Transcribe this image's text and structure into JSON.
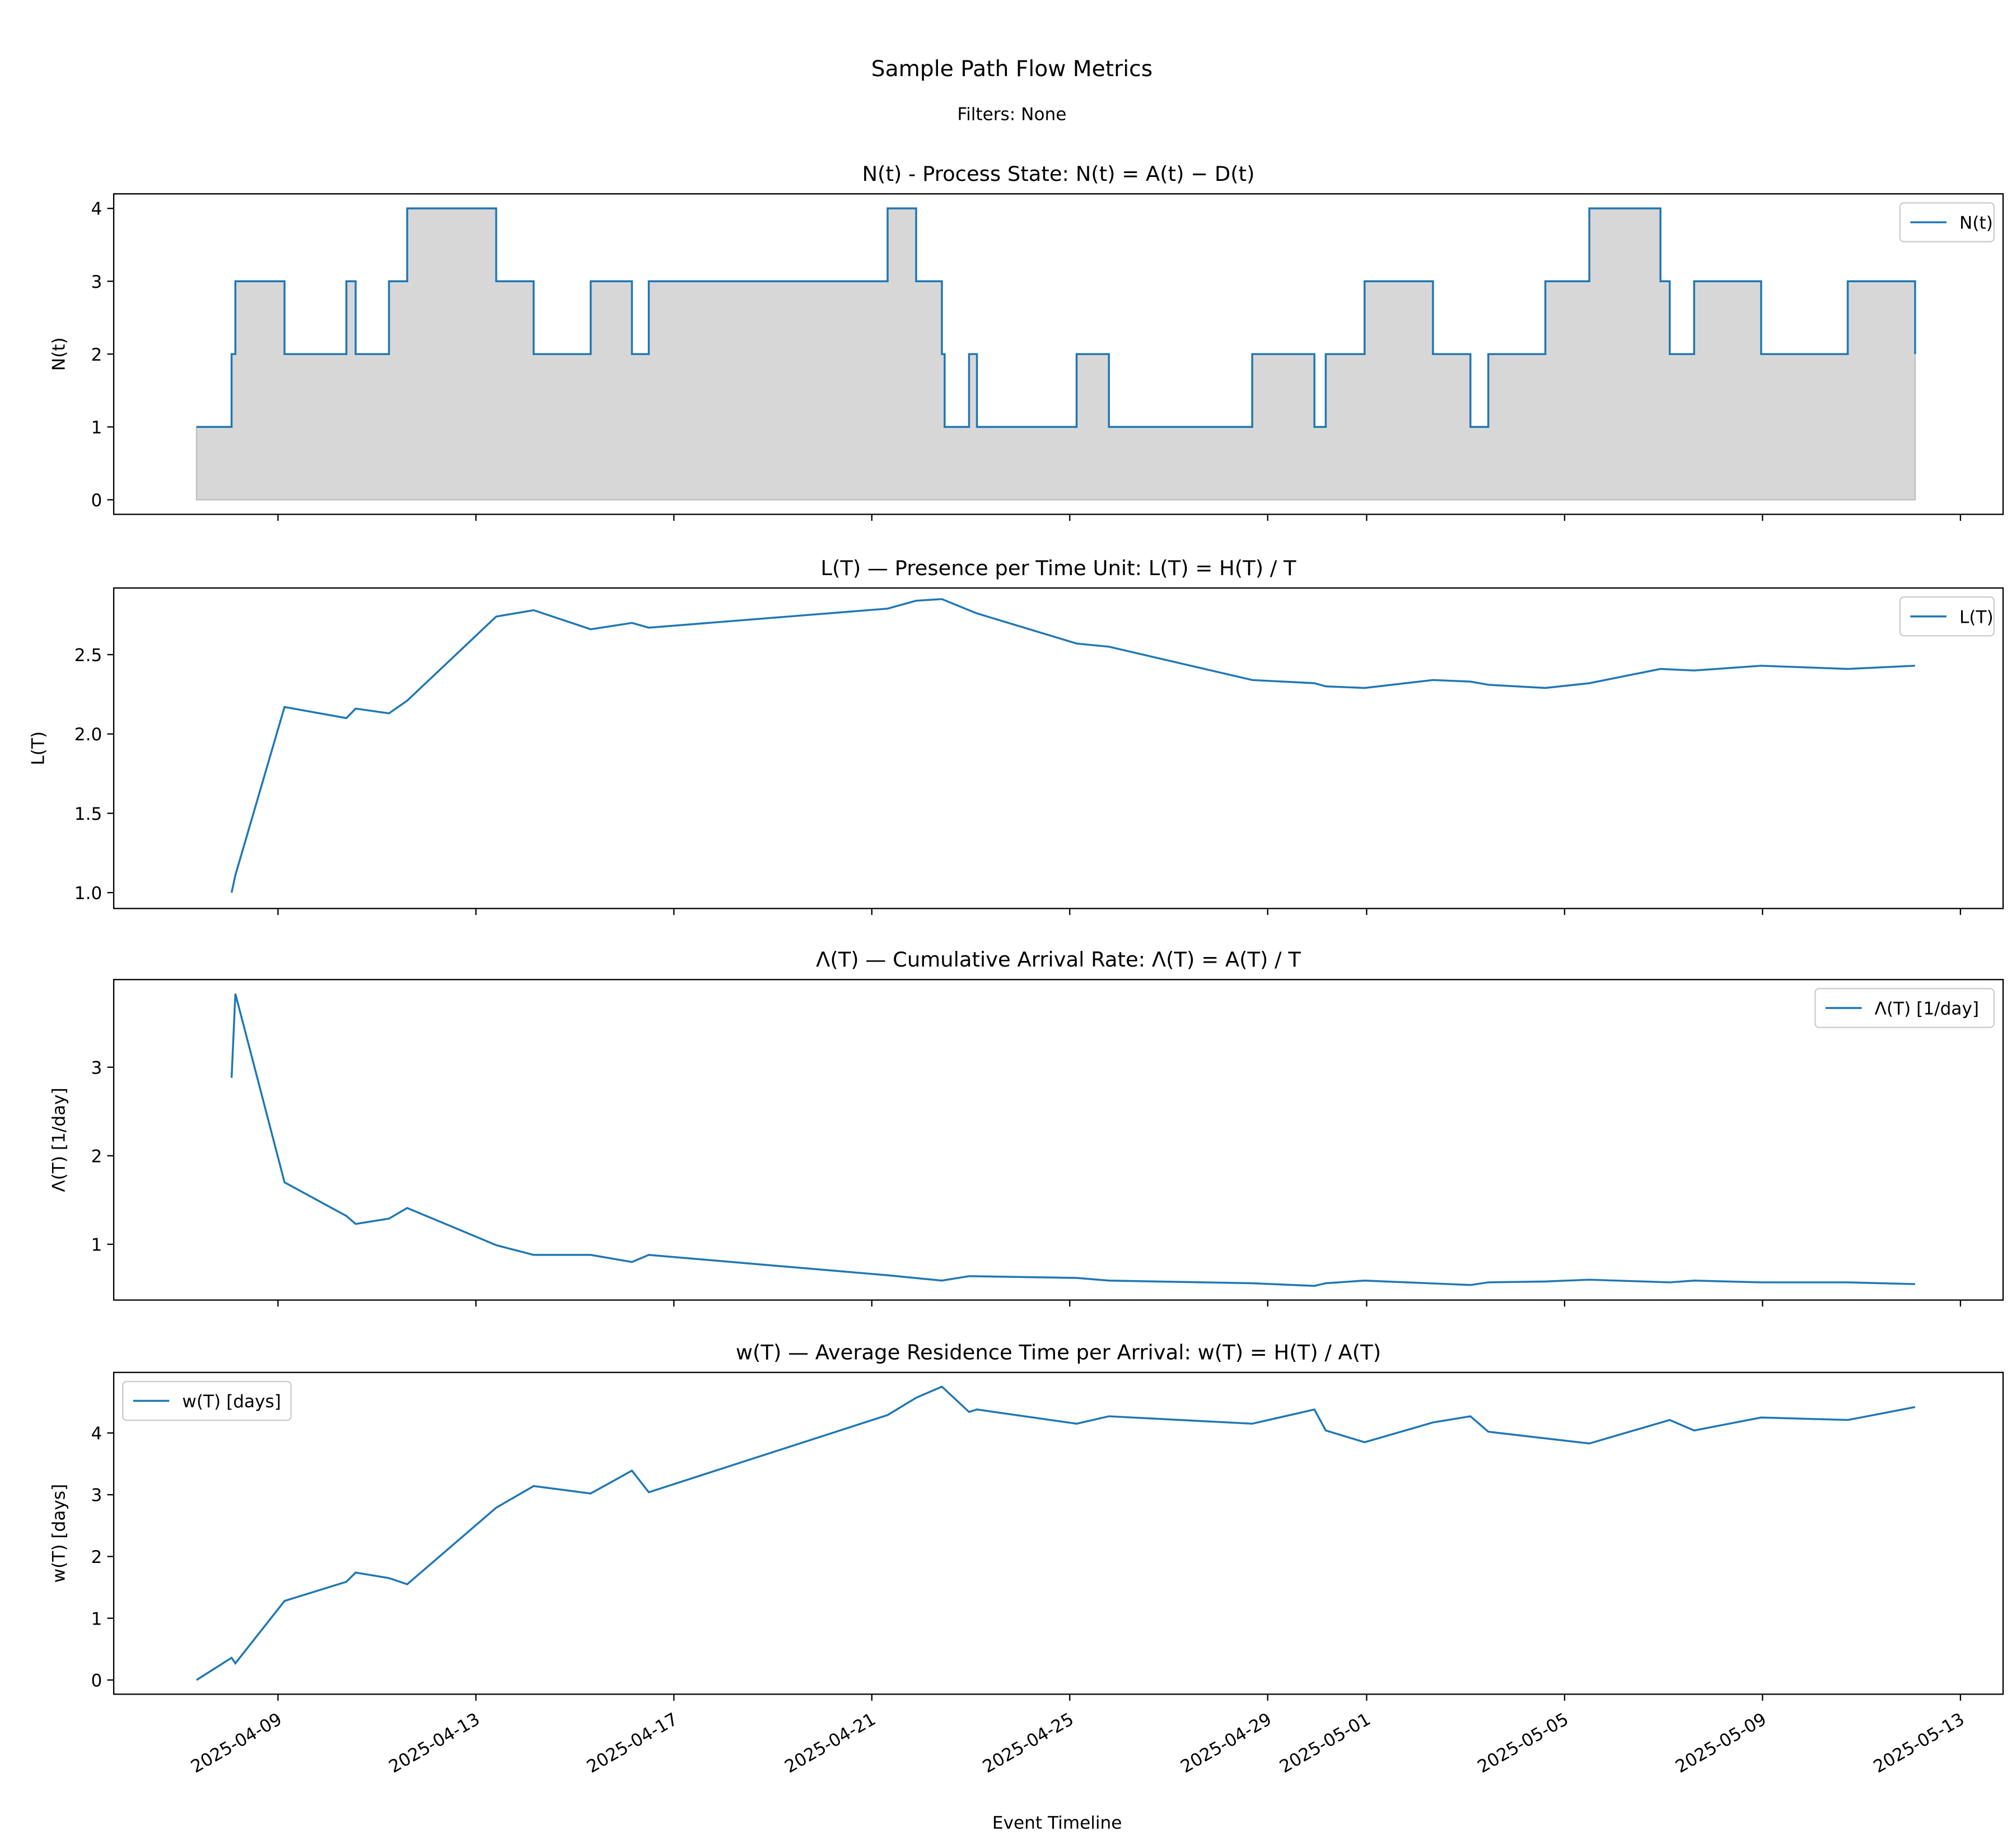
{
  "figure": {
    "title": "Sample Path Flow Metrics",
    "subtitle": "Filters: None"
  },
  "shared_x": {
    "xlabel": "Event Timeline",
    "xlim": [
      "2025-04-05T16:20",
      "2025-05-13T20:40"
    ],
    "ticks": [
      "2025-04-09",
      "2025-04-13",
      "2025-04-17",
      "2025-04-21",
      "2025-04-25",
      "2025-04-29",
      "2025-05-01",
      "2025-05-05",
      "2025-05-09",
      "2025-05-13"
    ]
  },
  "colors": {
    "line": "#1f77b4",
    "fill": "#d7d7d7",
    "fill_edge": "#bfbfbf"
  },
  "chart_data": [
    {
      "type": "line",
      "step": true,
      "filled": true,
      "title": "N(t) - Process State: N(t) = A(t) − D(t)",
      "ylabel": "N(t)",
      "ylim": [
        -0.2,
        4.2
      ],
      "yticks": [
        "0",
        "1",
        "2",
        "3",
        "4"
      ],
      "grid": false,
      "legend": {
        "label": "N(t)",
        "position": "top-right"
      },
      "points": [
        [
          "2025-04-07T08:30",
          1
        ],
        [
          "2025-04-08T01:30",
          2
        ],
        [
          "2025-04-08T03:20",
          3
        ],
        [
          "2025-04-09T03:10",
          2
        ],
        [
          "2025-04-10T09:10",
          3
        ],
        [
          "2025-04-10T13:40",
          2
        ],
        [
          "2025-04-11T05:50",
          3
        ],
        [
          "2025-04-11T14:40",
          4
        ],
        [
          "2025-04-13T09:50",
          3
        ],
        [
          "2025-04-14T04:00",
          2
        ],
        [
          "2025-04-15T07:40",
          3
        ],
        [
          "2025-04-16T03:40",
          2
        ],
        [
          "2025-04-16T11:50",
          3
        ],
        [
          "2025-04-21T07:40",
          4
        ],
        [
          "2025-04-21T21:30",
          3
        ],
        [
          "2025-04-22T10:00",
          2
        ],
        [
          "2025-04-22T11:20",
          1
        ],
        [
          "2025-04-22T23:10",
          2
        ],
        [
          "2025-04-23T03:00",
          1
        ],
        [
          "2025-04-25T03:20",
          2
        ],
        [
          "2025-04-25T19:00",
          1
        ],
        [
          "2025-04-28T16:30",
          2
        ],
        [
          "2025-04-29T22:40",
          1
        ],
        [
          "2025-04-30T04:10",
          2
        ],
        [
          "2025-04-30T23:00",
          3
        ],
        [
          "2025-05-02T08:10",
          2
        ],
        [
          "2025-05-03T02:20",
          1
        ],
        [
          "2025-05-03T11:00",
          2
        ],
        [
          "2025-05-04T14:40",
          3
        ],
        [
          "2025-05-05T12:00",
          4
        ],
        [
          "2025-05-06T22:30",
          3
        ],
        [
          "2025-05-07T03:00",
          2
        ],
        [
          "2025-05-07T14:50",
          3
        ],
        [
          "2025-05-08T23:20",
          2
        ],
        [
          "2025-05-10T17:20",
          3
        ],
        [
          "2025-05-12T02:00",
          2
        ]
      ]
    },
    {
      "type": "line",
      "title": "L(T) — Presence per Time Unit: L(T) = H(T) / T",
      "ylabel": "L(T)",
      "ylim": [
        0.9,
        2.92
      ],
      "yticks": [
        "1.0",
        "1.5",
        "2.0",
        "2.5"
      ],
      "grid": false,
      "legend": {
        "label": "L(T)",
        "position": "top-right"
      },
      "points": [
        [
          "2025-04-08T01:30",
          1.0
        ],
        [
          "2025-04-08T03:20",
          1.11
        ],
        [
          "2025-04-09T03:10",
          2.17
        ],
        [
          "2025-04-10T09:10",
          2.1
        ],
        [
          "2025-04-10T13:40",
          2.16
        ],
        [
          "2025-04-11T05:50",
          2.13
        ],
        [
          "2025-04-11T14:40",
          2.21
        ],
        [
          "2025-04-13T09:50",
          2.74
        ],
        [
          "2025-04-14T04:00",
          2.78
        ],
        [
          "2025-04-15T07:40",
          2.66
        ],
        [
          "2025-04-16T03:40",
          2.7
        ],
        [
          "2025-04-16T11:50",
          2.67
        ],
        [
          "2025-04-21T07:40",
          2.79
        ],
        [
          "2025-04-21T21:30",
          2.84
        ],
        [
          "2025-04-22T10:00",
          2.85
        ],
        [
          "2025-04-22T23:10",
          2.78
        ],
        [
          "2025-04-23T03:00",
          2.76
        ],
        [
          "2025-04-25T03:20",
          2.57
        ],
        [
          "2025-04-25T19:00",
          2.55
        ],
        [
          "2025-04-28T16:30",
          2.34
        ],
        [
          "2025-04-29T22:40",
          2.32
        ],
        [
          "2025-04-30T04:10",
          2.3
        ],
        [
          "2025-04-30T23:00",
          2.29
        ],
        [
          "2025-05-02T08:10",
          2.34
        ],
        [
          "2025-05-03T02:20",
          2.33
        ],
        [
          "2025-05-03T11:00",
          2.31
        ],
        [
          "2025-05-04T14:40",
          2.29
        ],
        [
          "2025-05-05T12:00",
          2.32
        ],
        [
          "2025-05-06T22:30",
          2.41
        ],
        [
          "2025-05-07T14:50",
          2.4
        ],
        [
          "2025-05-08T23:20",
          2.43
        ],
        [
          "2025-05-10T17:20",
          2.41
        ],
        [
          "2025-05-12T02:00",
          2.43
        ]
      ]
    },
    {
      "type": "line",
      "title": "Λ(T) — Cumulative Arrival Rate: Λ(T) = A(T) / T",
      "ylabel": "Λ(T) [1/day]",
      "ylim": [
        0.37,
        3.99
      ],
      "yticks": [
        "1",
        "2",
        "3"
      ],
      "grid": false,
      "legend": {
        "label": "Λ(T) [1/day]",
        "position": "top-right"
      },
      "points": [
        [
          "2025-04-08T01:30",
          2.88
        ],
        [
          "2025-04-08T03:20",
          3.83
        ],
        [
          "2025-04-09T03:10",
          1.7
        ],
        [
          "2025-04-10T09:10",
          1.32
        ],
        [
          "2025-04-10T13:40",
          1.23
        ],
        [
          "2025-04-11T05:50",
          1.29
        ],
        [
          "2025-04-11T14:40",
          1.41
        ],
        [
          "2025-04-13T09:50",
          0.99
        ],
        [
          "2025-04-14T04:00",
          0.88
        ],
        [
          "2025-04-15T07:40",
          0.88
        ],
        [
          "2025-04-16T03:40",
          0.8
        ],
        [
          "2025-04-16T11:50",
          0.88
        ],
        [
          "2025-04-21T07:40",
          0.65
        ],
        [
          "2025-04-22T10:00",
          0.59
        ],
        [
          "2025-04-22T23:10",
          0.64
        ],
        [
          "2025-04-25T03:20",
          0.62
        ],
        [
          "2025-04-25T19:00",
          0.59
        ],
        [
          "2025-04-28T16:30",
          0.56
        ],
        [
          "2025-04-29T22:40",
          0.53
        ],
        [
          "2025-04-30T04:10",
          0.56
        ],
        [
          "2025-04-30T23:00",
          0.59
        ],
        [
          "2025-05-03T02:20",
          0.54
        ],
        [
          "2025-05-03T11:00",
          0.57
        ],
        [
          "2025-05-04T14:40",
          0.58
        ],
        [
          "2025-05-05T12:00",
          0.6
        ],
        [
          "2025-05-07T03:00",
          0.57
        ],
        [
          "2025-05-07T14:50",
          0.59
        ],
        [
          "2025-05-08T23:20",
          0.57
        ],
        [
          "2025-05-10T17:20",
          0.57
        ],
        [
          "2025-05-12T02:00",
          0.55
        ]
      ]
    },
    {
      "type": "line",
      "title": "w(T) — Average Residence Time per Arrival: w(T) = H(T) / A(T)",
      "ylabel": "w(T) [days]",
      "ylim": [
        -0.23,
        4.98
      ],
      "yticks": [
        "0",
        "1",
        "2",
        "3",
        "4"
      ],
      "grid": false,
      "legend": {
        "label": "w(T) [days]",
        "position": "top-left"
      },
      "points": [
        [
          "2025-04-07T08:30",
          0.0
        ],
        [
          "2025-04-08T01:30",
          0.36
        ],
        [
          "2025-04-08T03:20",
          0.27
        ],
        [
          "2025-04-09T03:10",
          1.28
        ],
        [
          "2025-04-10T09:10",
          1.59
        ],
        [
          "2025-04-10T13:40",
          1.74
        ],
        [
          "2025-04-11T05:50",
          1.65
        ],
        [
          "2025-04-11T14:40",
          1.55
        ],
        [
          "2025-04-13T09:50",
          2.79
        ],
        [
          "2025-04-14T04:00",
          3.14
        ],
        [
          "2025-04-15T07:40",
          3.02
        ],
        [
          "2025-04-16T03:40",
          3.39
        ],
        [
          "2025-04-16T11:50",
          3.04
        ],
        [
          "2025-04-21T07:40",
          4.29
        ],
        [
          "2025-04-21T21:30",
          4.57
        ],
        [
          "2025-04-22T10:00",
          4.75
        ],
        [
          "2025-04-22T23:10",
          4.34
        ],
        [
          "2025-04-23T03:00",
          4.38
        ],
        [
          "2025-04-25T03:20",
          4.15
        ],
        [
          "2025-04-25T19:00",
          4.27
        ],
        [
          "2025-04-28T16:30",
          4.15
        ],
        [
          "2025-04-29T22:40",
          4.38
        ],
        [
          "2025-04-30T04:10",
          4.04
        ],
        [
          "2025-04-30T23:00",
          3.85
        ],
        [
          "2025-05-02T08:10",
          4.17
        ],
        [
          "2025-05-03T02:20",
          4.27
        ],
        [
          "2025-05-03T11:00",
          4.02
        ],
        [
          "2025-05-05T12:00",
          3.83
        ],
        [
          "2025-05-07T03:00",
          4.21
        ],
        [
          "2025-05-07T14:50",
          4.04
        ],
        [
          "2025-05-08T23:20",
          4.25
        ],
        [
          "2025-05-10T17:20",
          4.21
        ],
        [
          "2025-05-12T02:00",
          4.42
        ]
      ]
    }
  ]
}
